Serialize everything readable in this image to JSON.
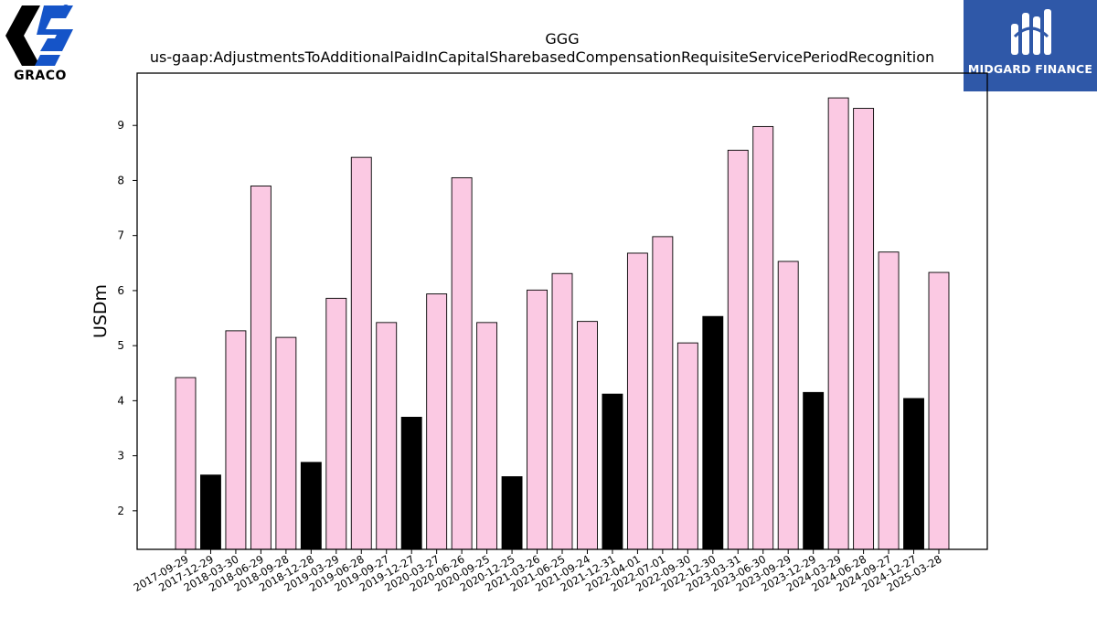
{
  "logos": {
    "left_text": "GRACO",
    "right_text": "MIDGARD FINANCE"
  },
  "colors": {
    "bar_default": "#fbc9e3",
    "bar_highlight": "#000000",
    "bar_edge": "#000000",
    "graco_blue": "#1554c8",
    "midgard_blue": "#2f58a8"
  },
  "chart_data": {
    "type": "bar",
    "title": "GGG",
    "subtitle": "us-gaap:AdjustmentsToAdditionalPaidInCapitalSharebasedCompensationRequisiteServicePeriodRecognition",
    "xlabel": "",
    "ylabel": "USDm",
    "ylim": [
      1.3,
      9.95
    ],
    "yticks": [
      2,
      3,
      4,
      5,
      6,
      7,
      8,
      9
    ],
    "grid": false,
    "categories": [
      "2017-09-29",
      "2017-12-29",
      "2018-03-30",
      "2018-06-29",
      "2018-09-28",
      "2018-12-28",
      "2019-03-29",
      "2019-06-28",
      "2019-09-27",
      "2019-12-27",
      "2020-03-27",
      "2020-06-26",
      "2020-09-25",
      "2020-12-25",
      "2021-03-26",
      "2021-06-25",
      "2021-09-24",
      "2021-12-31",
      "2022-04-01",
      "2022-07-01",
      "2022-09-30",
      "2022-12-30",
      "2023-03-31",
      "2023-06-30",
      "2023-09-29",
      "2023-12-29",
      "2024-03-29",
      "2024-06-28",
      "2024-09-27",
      "2024-12-27",
      "2025-03-28"
    ],
    "values": [
      4.42,
      2.65,
      5.27,
      7.9,
      5.15,
      2.88,
      5.86,
      8.42,
      5.42,
      3.7,
      5.94,
      8.05,
      5.42,
      2.62,
      6.01,
      6.31,
      5.44,
      4.12,
      6.68,
      6.98,
      5.05,
      5.53,
      8.55,
      8.98,
      6.53,
      4.15,
      9.5,
      9.31,
      6.7,
      4.04,
      6.33
    ],
    "highlight": [
      false,
      true,
      false,
      false,
      false,
      true,
      false,
      false,
      false,
      true,
      false,
      false,
      false,
      true,
      false,
      false,
      false,
      true,
      false,
      false,
      false,
      true,
      false,
      false,
      false,
      true,
      false,
      false,
      false,
      true,
      false
    ]
  }
}
